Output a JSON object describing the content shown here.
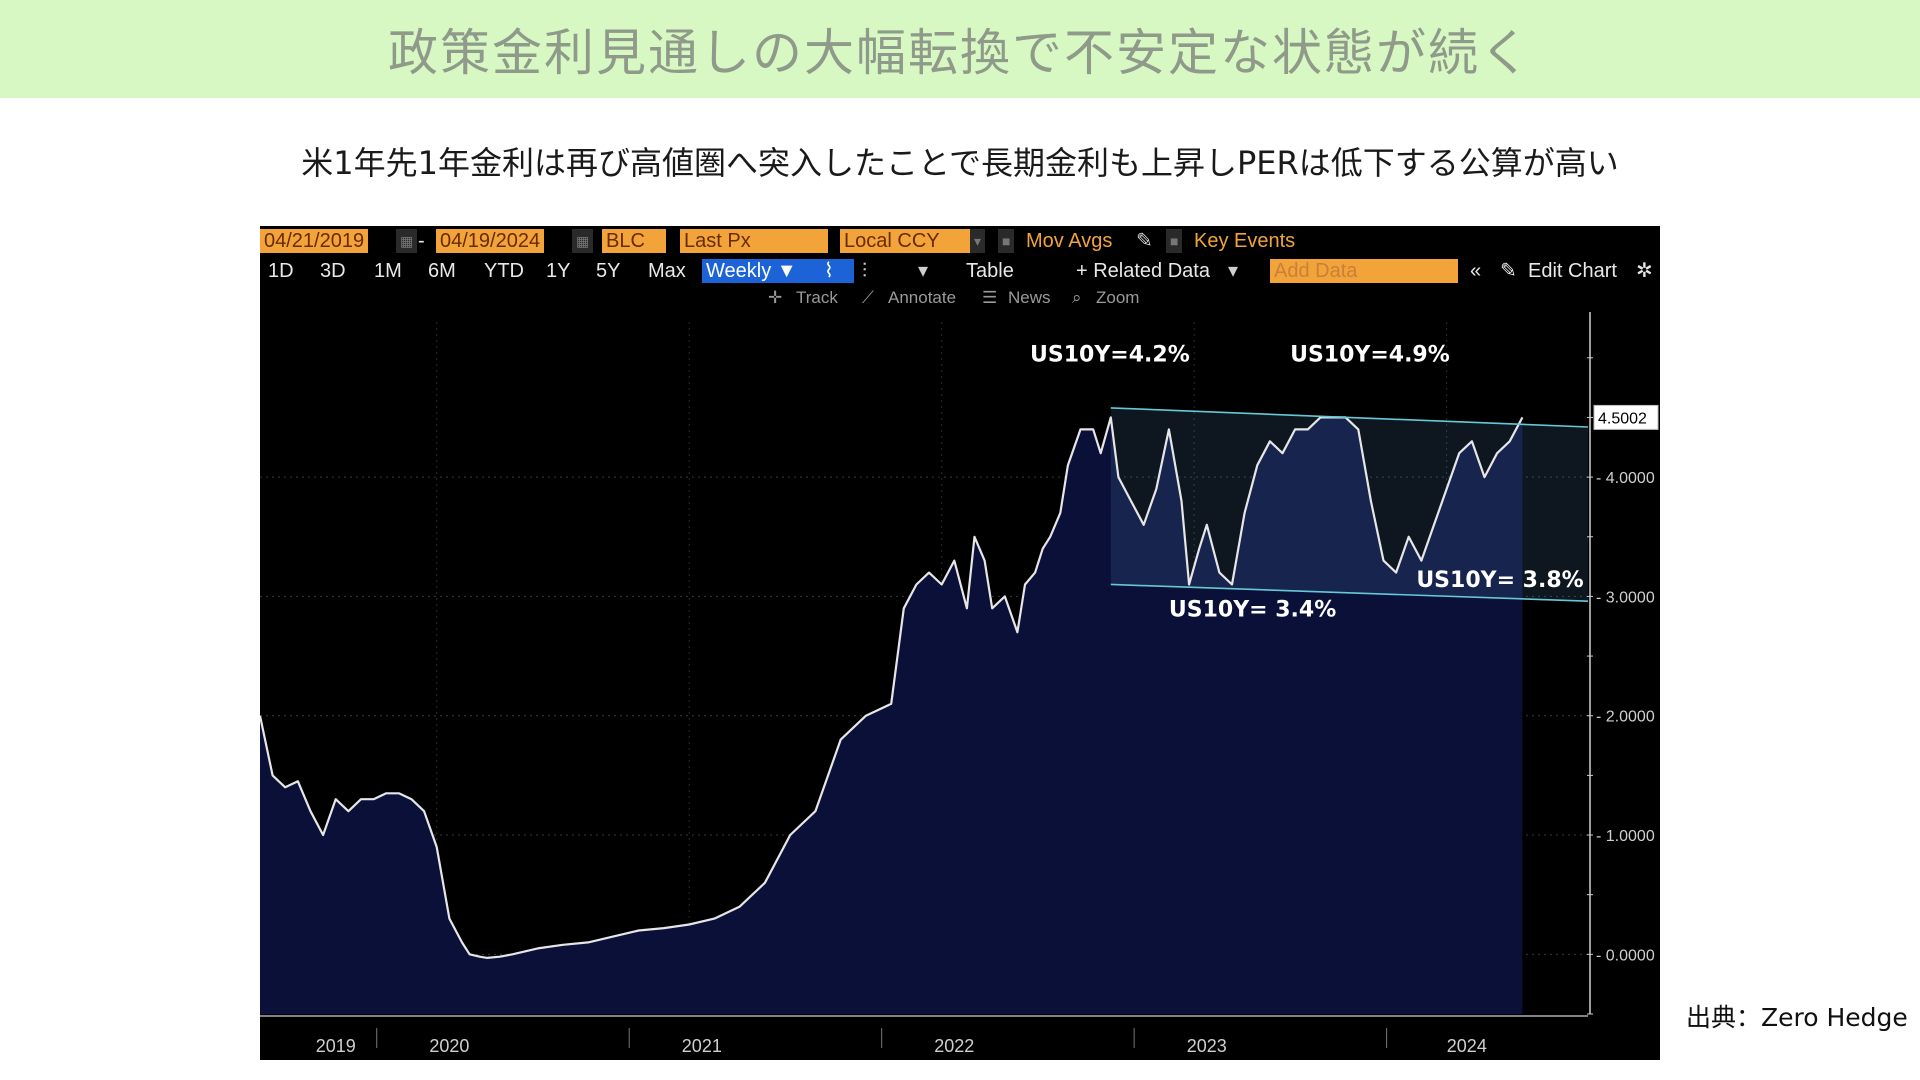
{
  "header": {
    "title": "政策金利見通しの大幅転換で不安定な状態が続く",
    "subtitle": "米1年先1年金利は再び高値圏へ突入したことで長期金利も上昇しPERは低下する公算が高い"
  },
  "toolbar": {
    "start_date": "04/21/2019",
    "separator": "-",
    "end_date": "04/19/2024",
    "ticker": "BLC",
    "field": "Last Px",
    "currency": "Local CCY",
    "mov_avgs": "Mov Avgs",
    "key_events": "Key Events",
    "periods": [
      "1D",
      "3D",
      "1M",
      "6M",
      "YTD",
      "1Y",
      "5Y",
      "Max"
    ],
    "frequency": "Weekly ▼",
    "table": "Table",
    "related_data": "+ Related Data",
    "add_data_placeholder": "Add Data",
    "edit_chart": "Edit Chart",
    "track": "Track",
    "annotate": "Annotate",
    "news": "News",
    "zoom": "Zoom"
  },
  "colors": {
    "accent_orange": "#f2a43a",
    "line": "#e6e6e6",
    "area_fill": "#0b1038",
    "channel": "#66c8d6",
    "title_bg": "#d8f8c3"
  },
  "source": "出典：Zero Hedge",
  "chart_data": {
    "type": "area",
    "x_labels": [
      "2019",
      "2020",
      "2021",
      "2022",
      "2023",
      "2024"
    ],
    "x_range": [
      2019.3,
      2024.3
    ],
    "ylim": [
      -0.5,
      5.3
    ],
    "y_ticks": [
      "0.0000",
      "1.0000",
      "2.0000",
      "3.0000",
      "4.0000"
    ],
    "last_value_label": "4.5002",
    "last_value": 4.5002,
    "grid": true,
    "annotations": [
      "US10Y=4.2%",
      "US10Y=4.9%",
      "US10Y= 3.4%",
      "US10Y= 3.8%"
    ],
    "channel": {
      "upper": [
        [
          2022.67,
          4.58
        ],
        [
          2024.56,
          4.42
        ]
      ],
      "lower": [
        [
          2022.67,
          3.1
        ],
        [
          2024.56,
          2.96
        ]
      ]
    },
    "series": [
      {
        "x": [
          2019.3,
          2019.35,
          2019.4,
          2019.45,
          2019.5,
          2019.55,
          2019.6,
          2019.65,
          2019.7,
          2019.75,
          2019.8,
          2019.85,
          2019.9,
          2019.95,
          2020.0,
          2020.05,
          2020.1,
          2020.13,
          2020.17,
          2020.2,
          2020.25,
          2020.3,
          2020.4,
          2020.5,
          2020.6,
          2020.7,
          2020.8,
          2020.9,
          2021.0,
          2021.1,
          2021.2,
          2021.3,
          2021.4,
          2021.5,
          2021.6,
          2021.7,
          2021.8,
          2021.85,
          2021.9,
          2021.95,
          2022.0,
          2022.05,
          2022.1,
          2022.13,
          2022.17,
          2022.2,
          2022.25,
          2022.3,
          2022.33,
          2022.37,
          2022.4,
          2022.43,
          2022.47,
          2022.5,
          2022.55,
          2022.6,
          2022.63,
          2022.67,
          2022.7,
          2022.75,
          2022.8,
          2022.85,
          2022.9,
          2022.95,
          2022.98,
          2023.02,
          2023.05,
          2023.1,
          2023.15,
          2023.2,
          2023.25,
          2023.3,
          2023.35,
          2023.4,
          2023.45,
          2023.5,
          2023.55,
          2023.6,
          2023.65,
          2023.7,
          2023.75,
          2023.8,
          2023.85,
          2023.9,
          2023.95,
          2024.0,
          2024.05,
          2024.1,
          2024.15,
          2024.2,
          2024.25,
          2024.3
        ],
        "y": [
          2.0,
          1.5,
          1.4,
          1.45,
          1.2,
          1.0,
          1.3,
          1.2,
          1.3,
          1.3,
          1.35,
          1.35,
          1.3,
          1.2,
          0.9,
          0.3,
          0.1,
          0.0,
          -0.02,
          -0.03,
          -0.02,
          0.0,
          0.05,
          0.08,
          0.1,
          0.15,
          0.2,
          0.22,
          0.25,
          0.3,
          0.4,
          0.6,
          1.0,
          1.2,
          1.8,
          2.0,
          2.1,
          2.9,
          3.1,
          3.2,
          3.1,
          3.3,
          2.9,
          3.5,
          3.3,
          2.9,
          3.0,
          2.7,
          3.1,
          3.2,
          3.4,
          3.5,
          3.7,
          4.1,
          4.4,
          4.4,
          4.2,
          4.5,
          4.0,
          3.8,
          3.6,
          3.9,
          4.4,
          3.8,
          3.1,
          3.4,
          3.6,
          3.2,
          3.1,
          3.7,
          4.1,
          4.3,
          4.2,
          4.4,
          4.4,
          4.5,
          4.5,
          4.5,
          4.4,
          3.8,
          3.3,
          3.2,
          3.5,
          3.3,
          3.6,
          3.9,
          4.2,
          4.3,
          4.0,
          4.2,
          4.3,
          4.5
        ]
      }
    ]
  }
}
